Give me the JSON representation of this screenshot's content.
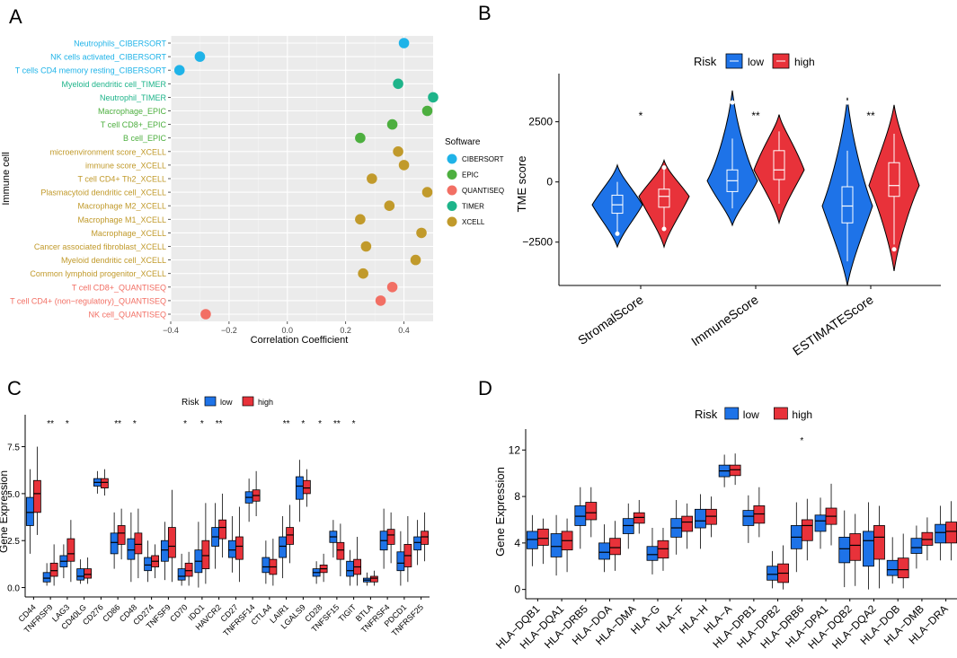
{
  "colors": {
    "cibersort": "#1FB3E8",
    "epic": "#4DAF3F",
    "quantiseq": "#F26F64",
    "timer": "#1EB48A",
    "xcell": "#C19A2B",
    "low": "#1E73E8",
    "high": "#E8323A",
    "panel_bg": "#EBEBEB"
  },
  "panels": {
    "A": {
      "label": "A"
    },
    "B": {
      "label": "B"
    },
    "C": {
      "label": "C"
    },
    "D": {
      "label": "D"
    }
  },
  "chart_data": [
    {
      "id": "A",
      "type": "scatter",
      "xlabel": "Correlation Coefficient",
      "ylabel": "Immune cell",
      "xlim": [
        -0.4,
        0.5
      ],
      "xticks": [
        -0.4,
        -0.2,
        0.0,
        0.2,
        0.4
      ],
      "xtick_labels": [
        "−0.4",
        "−0.2",
        "0.0",
        "0.2",
        "0.4"
      ],
      "legend_title": "Software",
      "legend_position": "right",
      "legend": [
        {
          "label": "CIBERSORT",
          "key": "cibersort"
        },
        {
          "label": "EPIC",
          "key": "epic"
        },
        {
          "label": "QUANTISEQ",
          "key": "quantiseq"
        },
        {
          "label": "TIMER",
          "key": "timer"
        },
        {
          "label": "XCELL",
          "key": "xcell"
        }
      ],
      "points": [
        {
          "cell": "Neutrophils_CIBERSORT",
          "value": 0.4,
          "software": "cibersort"
        },
        {
          "cell": "NK cells activated_CIBERSORT",
          "value": -0.3,
          "software": "cibersort"
        },
        {
          "cell": "T cells CD4 memory resting_CIBERSORT",
          "value": -0.37,
          "software": "cibersort"
        },
        {
          "cell": "Myeloid dendritic cell_TIMER",
          "value": 0.38,
          "software": "timer"
        },
        {
          "cell": "Neutrophil_TIMER",
          "value": 0.5,
          "software": "timer"
        },
        {
          "cell": "Macrophage_EPIC",
          "value": 0.48,
          "software": "epic"
        },
        {
          "cell": "T cell CD8+_EPIC",
          "value": 0.36,
          "software": "epic"
        },
        {
          "cell": "B cell_EPIC",
          "value": 0.25,
          "software": "epic"
        },
        {
          "cell": "microenvironment score_XCELL",
          "value": 0.38,
          "software": "xcell"
        },
        {
          "cell": "immune score_XCELL",
          "value": 0.4,
          "software": "xcell"
        },
        {
          "cell": "T cell CD4+ Th2_XCELL",
          "value": 0.29,
          "software": "xcell"
        },
        {
          "cell": "Plasmacytoid dendritic cell_XCELL",
          "value": 0.48,
          "software": "xcell"
        },
        {
          "cell": "Macrophage M2_XCELL",
          "value": 0.35,
          "software": "xcell"
        },
        {
          "cell": "Macrophage M1_XCELL",
          "value": 0.25,
          "software": "xcell"
        },
        {
          "cell": "Macrophage_XCELL",
          "value": 0.46,
          "software": "xcell"
        },
        {
          "cell": "Cancer associated fibroblast_XCELL",
          "value": 0.27,
          "software": "xcell"
        },
        {
          "cell": "Myeloid dendritic cell_XCELL",
          "value": 0.44,
          "software": "xcell"
        },
        {
          "cell": "Common lymphoid progenitor_XCELL",
          "value": 0.26,
          "software": "xcell"
        },
        {
          "cell": "T cell CD8+_QUANTISEQ",
          "value": 0.36,
          "software": "quantiseq"
        },
        {
          "cell": "T cell CD4+ (non−regulatory)_QUANTISEQ",
          "value": 0.32,
          "software": "quantiseq"
        },
        {
          "cell": "NK cell_QUANTISEQ",
          "value": -0.28,
          "software": "quantiseq"
        }
      ]
    },
    {
      "id": "B",
      "type": "violin",
      "legend_title": "Risk",
      "legend_position": "top",
      "legend": [
        {
          "label": "low",
          "key": "low"
        },
        {
          "label": "high",
          "key": "high"
        }
      ],
      "ylabel": "TME score",
      "ylim": [
        -4300,
        4500
      ],
      "yticks": [
        -2500,
        0,
        2500
      ],
      "ytick_labels": [
        "−2500",
        "0",
        "2500"
      ],
      "categories": [
        "StromalScore",
        "ImmuneScore",
        "ESTIMATEScore"
      ],
      "significance": [
        "*",
        "**",
        "**"
      ],
      "groups": [
        {
          "low": {
            "q1": -1300,
            "med": -950,
            "q3": -550,
            "lo": -2200,
            "hi": 0,
            "min": -2700,
            "max": 700,
            "out_lo": -2150
          },
          "high": {
            "q1": -1050,
            "med": -600,
            "q3": -300,
            "lo": -1900,
            "hi": 600,
            "min": -2700,
            "max": 900,
            "out_hi": 600,
            "out_lo": -1950
          }
        },
        {
          "low": {
            "q1": -400,
            "med": 50,
            "q3": 500,
            "lo": -1100,
            "hi": 1800,
            "min": -1800,
            "max": 3800,
            "out_hi": 3300
          },
          "high": {
            "q1": 100,
            "med": 500,
            "q3": 1300,
            "lo": -900,
            "hi": 2100,
            "min": -1700,
            "max": 2800
          }
        },
        {
          "low": {
            "q1": -1700,
            "med": -1000,
            "q3": -200,
            "lo": -3300,
            "hi": 1300,
            "min": -4300,
            "max": 3500,
            "out_hi": 3300
          },
          "high": {
            "q1": -600,
            "med": -150,
            "q3": 800,
            "lo": -2600,
            "hi": 2000,
            "min": -3700,
            "max": 3200,
            "out_lo": -2800
          }
        }
      ]
    },
    {
      "id": "C",
      "type": "box",
      "legend_title": "Risk",
      "legend_position": "top",
      "legend": [
        {
          "label": "low",
          "key": "low"
        },
        {
          "label": "high",
          "key": "high"
        }
      ],
      "ylabel": "Gene Expression",
      "ylim": [
        -0.5,
        9.2
      ],
      "yticks": [
        0.0,
        2.5,
        5.0,
        7.5
      ],
      "ytick_labels": [
        "0.0",
        "2.5",
        "5.0",
        "7.5"
      ],
      "categories": [
        "CD44",
        "TNFRSF9",
        "LAG3",
        "CD40LG",
        "CD276",
        "CD86",
        "CD48",
        "CD274",
        "TNFSF9",
        "CD70",
        "IDO1",
        "HAVCR2",
        "CD27",
        "TNFRSF14",
        "CTLA4",
        "LAIR1",
        "LGALS9",
        "CD28",
        "TNFSF15",
        "TIGIT",
        "BTLA",
        "TNFRSF4",
        "PDCD1",
        "TNFRSF25"
      ],
      "significance": [
        "",
        "**",
        "*",
        "",
        "",
        "**",
        "*",
        "",
        "",
        "*",
        "*",
        "**",
        "",
        "",
        "",
        "**",
        "*",
        "*",
        "**",
        "*",
        "",
        "",
        "",
        ""
      ],
      "low": [
        [
          3.3,
          4.0,
          4.8,
          1.8,
          6.3
        ],
        [
          0.3,
          0.5,
          0.8,
          0.1,
          1.3
        ],
        [
          1.1,
          1.4,
          1.7,
          0.5,
          2.3
        ],
        [
          0.4,
          0.6,
          1.0,
          0.2,
          1.5
        ],
        [
          5.4,
          5.6,
          5.8,
          5.0,
          6.2
        ],
        [
          1.8,
          2.4,
          2.9,
          1.0,
          4.0
        ],
        [
          1.5,
          2.0,
          2.6,
          0.3,
          4.0
        ],
        [
          0.9,
          1.2,
          1.6,
          0.3,
          2.5
        ],
        [
          1.4,
          2.0,
          2.5,
          0.4,
          3.5
        ],
        [
          0.4,
          0.6,
          1.0,
          0.1,
          1.8
        ],
        [
          0.8,
          1.4,
          2.0,
          0.0,
          3.5
        ],
        [
          2.2,
          2.7,
          3.2,
          1.0,
          4.5
        ],
        [
          1.6,
          2.0,
          2.5,
          0.8,
          3.8
        ],
        [
          4.5,
          4.8,
          5.1,
          3.5,
          5.8
        ],
        [
          0.8,
          1.1,
          1.6,
          0.2,
          2.5
        ],
        [
          1.6,
          2.2,
          2.7,
          0.5,
          3.8
        ],
        [
          4.7,
          5.4,
          5.9,
          3.5,
          6.8
        ],
        [
          0.6,
          0.8,
          1.0,
          0.2,
          1.4
        ],
        [
          2.4,
          2.7,
          3.0,
          1.6,
          3.6
        ],
        [
          0.6,
          0.9,
          1.4,
          0.1,
          2.0
        ],
        [
          0.3,
          0.4,
          0.5,
          0.1,
          0.8
        ],
        [
          2.0,
          2.5,
          3.0,
          1.0,
          4.2
        ],
        [
          0.9,
          1.3,
          1.9,
          0.1,
          3.0
        ],
        [
          2.0,
          2.4,
          2.7,
          1.2,
          3.6
        ]
      ],
      "high": [
        [
          4.0,
          5.0,
          5.7,
          2.8,
          7.5
        ],
        [
          0.6,
          0.9,
          1.3,
          0.1,
          2.3
        ],
        [
          1.4,
          1.8,
          2.6,
          0.3,
          3.6
        ],
        [
          0.5,
          0.7,
          1.0,
          0.2,
          1.6
        ],
        [
          5.3,
          5.6,
          5.8,
          4.9,
          6.3
        ],
        [
          2.3,
          2.9,
          3.3,
          1.5,
          4.2
        ],
        [
          1.8,
          2.3,
          2.9,
          0.5,
          4.2
        ],
        [
          1.1,
          1.4,
          1.7,
          0.5,
          2.3
        ],
        [
          1.6,
          2.2,
          3.2,
          0.3,
          5.2
        ],
        [
          0.6,
          0.9,
          1.3,
          0.1,
          1.9
        ],
        [
          1.0,
          1.7,
          2.5,
          0.2,
          4.5
        ],
        [
          2.6,
          3.2,
          3.6,
          1.6,
          5.0
        ],
        [
          1.5,
          2.2,
          2.7,
          0.3,
          4.3
        ],
        [
          4.6,
          4.9,
          5.2,
          3.8,
          6.2
        ],
        [
          0.7,
          1.1,
          1.5,
          0.1,
          2.6
        ],
        [
          2.3,
          2.8,
          3.2,
          1.3,
          4.4
        ],
        [
          5.0,
          5.3,
          5.7,
          4.3,
          6.3
        ],
        [
          0.8,
          1.0,
          1.2,
          0.3,
          1.8
        ],
        [
          1.5,
          2.0,
          2.4,
          0.6,
          3.4
        ],
        [
          0.7,
          1.1,
          1.5,
          0.1,
          2.7
        ],
        [
          0.3,
          0.5,
          0.6,
          0.1,
          0.9
        ],
        [
          2.3,
          2.8,
          3.1,
          1.3,
          4.0
        ],
        [
          1.1,
          1.7,
          2.3,
          0.3,
          3.8
        ],
        [
          2.3,
          2.7,
          3.0,
          1.4,
          4.0
        ]
      ]
    },
    {
      "id": "D",
      "type": "box",
      "legend_title": "Risk",
      "legend_position": "top",
      "legend": [
        {
          "label": "low",
          "key": "low"
        },
        {
          "label": "high",
          "key": "high"
        }
      ],
      "ylabel": "Gene Expression",
      "ylim": [
        -0.8,
        13.8
      ],
      "yticks": [
        0,
        4,
        8,
        12
      ],
      "ytick_labels": [
        "0",
        "4",
        "8",
        "12"
      ],
      "categories": [
        "HLA−DQB1",
        "HLA−DQA1",
        "HLA−DRB5",
        "HLA−DOA",
        "HLA−DMA",
        "HLA−G",
        "HLA−F",
        "HLA−H",
        "HLA−A",
        "HLA−DPB1",
        "HLA−DPB2",
        "HLA−DRB6",
        "HLA−DPA1",
        "HLA−DQB2",
        "HLA−DQA2",
        "HLA−DOB",
        "HLA−DMB",
        "HLA−DRA"
      ],
      "visible_last_label": "HLA−DRA",
      "significance": [
        "",
        "",
        "",
        "",
        "",
        "",
        "",
        "",
        "",
        "",
        "",
        "*",
        "",
        "",
        "",
        "",
        "",
        ""
      ],
      "low": [
        [
          3.5,
          4.3,
          5.0,
          2.0,
          6.4
        ],
        [
          2.8,
          3.7,
          4.8,
          1.2,
          6.4
        ],
        [
          5.5,
          6.3,
          7.2,
          3.5,
          8.8
        ],
        [
          2.6,
          3.2,
          4.0,
          1.5,
          5.6
        ],
        [
          4.8,
          5.5,
          6.1,
          3.5,
          7.4
        ],
        [
          2.5,
          3.0,
          3.7,
          1.3,
          5.3
        ],
        [
          4.5,
          5.3,
          6.1,
          3.0,
          7.7
        ],
        [
          5.3,
          5.9,
          6.9,
          3.5,
          8.2
        ],
        [
          9.7,
          10.2,
          10.7,
          8.8,
          11.6
        ],
        [
          5.5,
          6.3,
          6.8,
          4.0,
          8.1
        ],
        [
          0.8,
          1.3,
          2.0,
          0.1,
          3.3
        ],
        [
          3.5,
          4.5,
          5.5,
          1.5,
          7.5
        ],
        [
          5.0,
          5.9,
          6.4,
          3.5,
          7.9
        ],
        [
          2.3,
          3.5,
          4.5,
          0.2,
          6.8
        ],
        [
          2.0,
          4.2,
          5.0,
          0.0,
          7.5
        ],
        [
          1.2,
          1.7,
          2.5,
          0.5,
          4.5
        ],
        [
          3.1,
          3.6,
          4.4,
          1.8,
          5.5
        ],
        [
          4.0,
          4.9,
          5.6,
          2.5,
          7.2
        ]
      ],
      "high": [
        [
          3.8,
          4.4,
          5.2,
          2.2,
          6.1
        ],
        [
          3.4,
          4.2,
          5.0,
          1.5,
          6.1
        ],
        [
          6.0,
          6.6,
          7.5,
          4.5,
          8.8
        ],
        [
          3.0,
          3.6,
          4.4,
          1.6,
          5.9
        ],
        [
          5.7,
          6.2,
          6.6,
          4.8,
          7.7
        ],
        [
          2.7,
          3.5,
          4.2,
          1.6,
          5.3
        ],
        [
          5.0,
          5.8,
          6.3,
          3.5,
          7.4
        ],
        [
          5.6,
          6.3,
          6.9,
          4.5,
          8.0
        ],
        [
          9.8,
          10.3,
          10.7,
          9.0,
          11.7
        ],
        [
          5.7,
          6.5,
          7.2,
          4.5,
          8.8
        ],
        [
          0.6,
          1.4,
          2.2,
          0.0,
          3.8
        ],
        [
          4.2,
          5.5,
          6.0,
          2.5,
          7.8
        ],
        [
          5.6,
          6.3,
          7.0,
          3.8,
          9.1
        ],
        [
          2.5,
          3.8,
          4.8,
          0.3,
          6.5
        ],
        [
          2.6,
          4.5,
          5.5,
          0.1,
          7.2
        ],
        [
          1.0,
          1.7,
          2.7,
          0.1,
          4.8
        ],
        [
          3.8,
          4.3,
          4.9,
          2.5,
          6.2
        ],
        [
          4.0,
          5.0,
          5.8,
          2.5,
          7.6
        ]
      ]
    }
  ]
}
